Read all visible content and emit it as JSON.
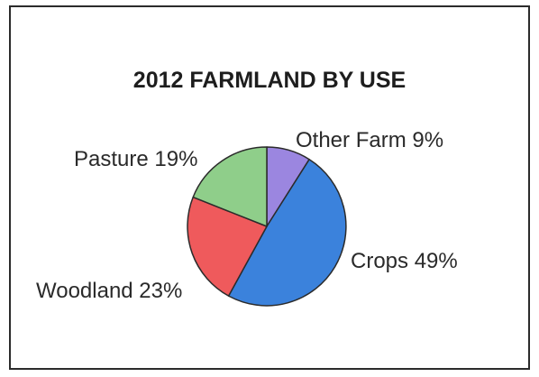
{
  "chart_data": {
    "type": "pie",
    "title": "2012 FARMLAND BY USE",
    "slices": [
      {
        "label": "Other Farm",
        "value": 9,
        "display": "Other Farm 9%",
        "color": "#9b86e0"
      },
      {
        "label": "Crops",
        "value": 49,
        "display": "Crops 49%",
        "color": "#3b82dc"
      },
      {
        "label": "Woodland",
        "value": 23,
        "display": "Woodland 23%",
        "color": "#ef5a5c"
      },
      {
        "label": "Pasture",
        "value": 19,
        "display": "Pasture 19%",
        "color": "#8fce8a"
      }
    ],
    "start_angle_deg": 0,
    "direction": "clockwise",
    "unit": "%"
  }
}
